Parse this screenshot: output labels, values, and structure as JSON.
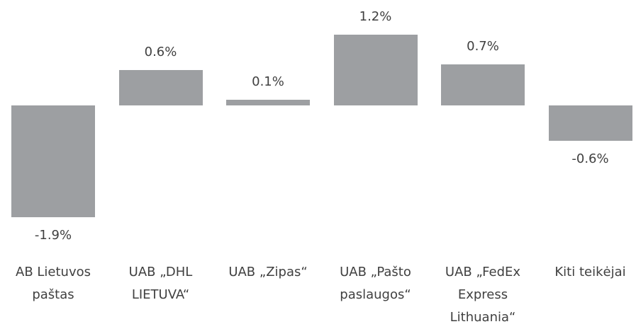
{
  "chart_data": {
    "type": "bar",
    "categories": [
      "AB Lietuvos paštas",
      "UAB „DHL LIETUVA“",
      "UAB „Zipas“",
      "UAB „Pašto paslaugos“",
      "UAB „FedEx Express Lithuania“",
      "Kiti teikėjai"
    ],
    "values": [
      -1.9,
      0.6,
      0.1,
      1.2,
      0.7,
      -0.6
    ],
    "value_labels": [
      "-1.9%",
      "0.6%",
      "0.1%",
      "1.2%",
      "0.7%",
      "-0.6%"
    ],
    "color": "#9d9fa2"
  }
}
